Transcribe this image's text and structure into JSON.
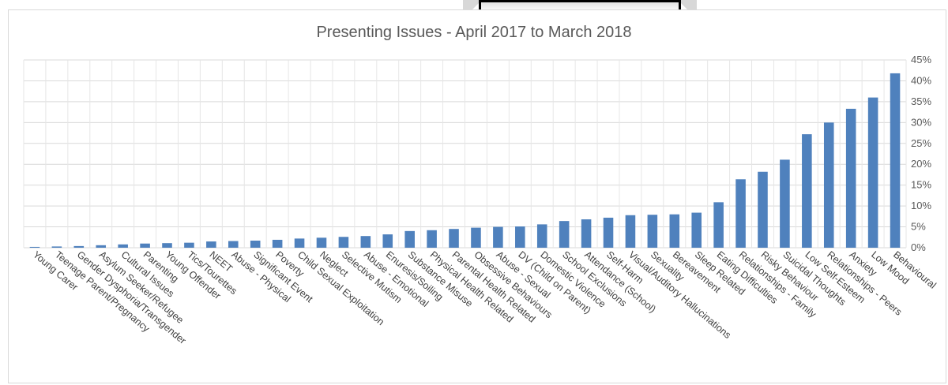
{
  "chart_data": {
    "type": "bar",
    "title": "Presenting Issues - April 2017 to March 2018",
    "xlabel": "",
    "ylabel": "",
    "ylim": [
      0,
      0.45
    ],
    "y_ticks": [
      "0%",
      "5%",
      "10%",
      "15%",
      "20%",
      "25%",
      "30%",
      "35%",
      "40%",
      "45%"
    ],
    "y_axis_position": "right",
    "grid": true,
    "bar_color": "#4f81bd",
    "categories": [
      "Young Carer",
      "Teenage Parent/Pregnancy",
      "Gender Dysphoria/Transgender",
      "Asylum Seeker/Refugee",
      "Cultural Issues",
      "Parenting",
      "Young Offender",
      "Tics/Tourettes",
      "NEET",
      "Abuse - Physical",
      "Significant Event",
      "Poverty",
      "Child Sexual Exploitation",
      "Neglect",
      "Selective Mutism",
      "Abuse - Emotional",
      "Enuresis/Soiling",
      "Substance Misuse",
      "Physical Health Related",
      "Parental Health Related",
      "Obsessive Behaviours",
      "Abuse - Sexual",
      "DV (Child on Parent)",
      "Domestic Violence",
      "School Exclusions",
      "Attendance (School)",
      "Self-Harm",
      "Visual/Auditory Hallucinations",
      "Sexuality",
      "Bereavement",
      "Sleep Related",
      "Eating Difficulties",
      "Relationships - Family",
      "Risky Behaviour",
      "Suicidal Thoughts",
      "Low Self-Esteem",
      "Relationships - Peers",
      "Anxiety",
      "Low Mood",
      "Behavioural"
    ],
    "values": [
      0.002,
      0.003,
      0.004,
      0.006,
      0.008,
      0.01,
      0.011,
      0.012,
      0.015,
      0.016,
      0.017,
      0.019,
      0.022,
      0.024,
      0.026,
      0.028,
      0.032,
      0.04,
      0.042,
      0.045,
      0.048,
      0.05,
      0.051,
      0.056,
      0.064,
      0.068,
      0.072,
      0.078,
      0.079,
      0.08,
      0.084,
      0.109,
      0.164,
      0.182,
      0.211,
      0.272,
      0.3,
      0.333,
      0.36,
      0.418
    ]
  }
}
